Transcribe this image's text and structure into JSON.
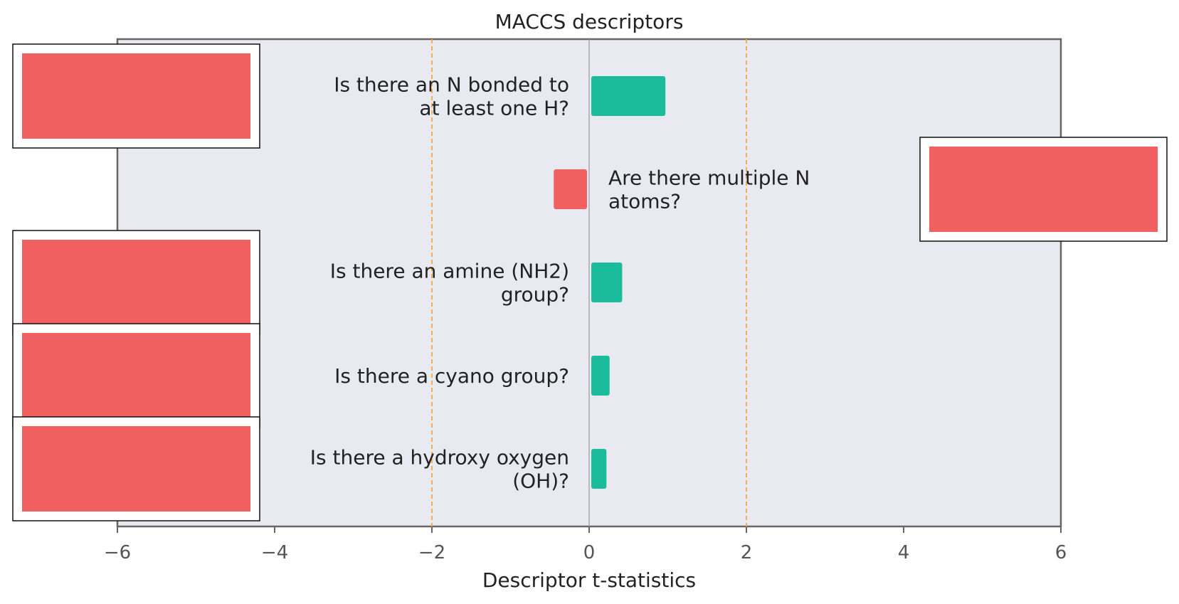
{
  "chart_data": {
    "type": "bar",
    "orientation": "horizontal",
    "title": "MACCS descriptors",
    "xlabel": "Descriptor t-statistics",
    "xlim": [
      -6,
      6
    ],
    "xticks": [
      "−6",
      "−4",
      "−2",
      "0",
      "2",
      "4",
      "6"
    ],
    "threshold_lines": [
      -2,
      2
    ],
    "threshold_color": "#f5a742",
    "positive_color": "#1abc9c",
    "negative_color": "#f06060",
    "background_color": "#e9eaf1",
    "bars": [
      {
        "label": "Is there an N bonded to\nat least one H?",
        "value": 0.97
      },
      {
        "label": "Are there multiple N\natoms?",
        "value": -0.45
      },
      {
        "label": "Is there an amine (NH2)\ngroup?",
        "value": 0.42
      },
      {
        "label": "Is there a cyano group?",
        "value": 0.26
      },
      {
        "label": "Is there a hydroxy oxygen\n(OH)?",
        "value": 0.22
      }
    ],
    "structure_images": [
      "left",
      "right",
      "left",
      "left",
      "left"
    ]
  }
}
